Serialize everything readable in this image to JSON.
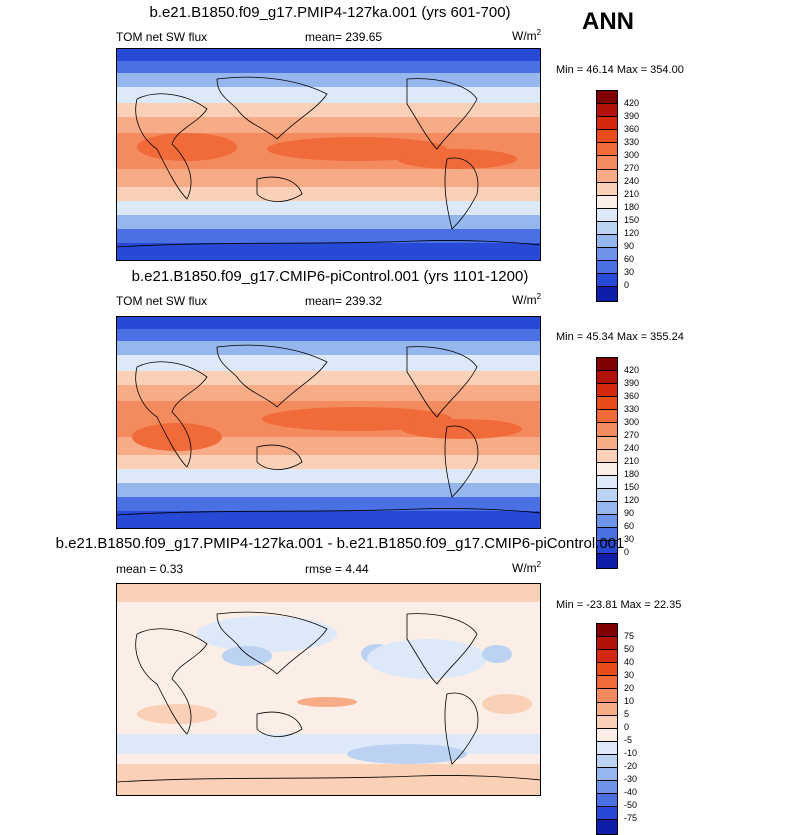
{
  "season": "ANN",
  "panels": [
    {
      "title": "b.e21.B1850.f09_g17.PMIP4-127ka.001 (yrs 601-700)",
      "left": "TOM net SW flux",
      "center": "mean= 239.65",
      "units": "W/m",
      "units_sup": "2",
      "minmax": "Min =  46.14 Max = 354.00",
      "colorbar": "absolute"
    },
    {
      "title": "b.e21.B1850.f09_g17.CMIP6-piControl.001 (yrs 1101-1200)",
      "left": "TOM net SW flux",
      "center": "mean= 239.32",
      "units": "W/m",
      "units_sup": "2",
      "minmax": "Min =  45.34 Max = 355.24",
      "colorbar": "absolute"
    },
    {
      "title": "b.e21.B1850.f09_g17.PMIP4-127ka.001 - b.e21.B1850.f09_g17.CMIP6-piControl.001",
      "left": "mean =   0.33",
      "center": "rmse =   4.44",
      "units": "W/m",
      "units_sup": "2",
      "minmax": "Min = -23.81 Max =  22.35",
      "colorbar": "difference"
    }
  ],
  "colorbars": {
    "absolute": {
      "labels": [
        "420",
        "390",
        "360",
        "330",
        "300",
        "270",
        "240",
        "210",
        "180",
        "150",
        "120",
        "90",
        "60",
        "30",
        "0"
      ],
      "colors": [
        "#7f0000",
        "#b3120a",
        "#d4270e",
        "#e84b1c",
        "#f06a3a",
        "#f48b5e",
        "#f7ab87",
        "#fad0b6",
        "#fbeee6",
        "#dde9f8",
        "#bcd2f3",
        "#96b6ee",
        "#6e94ea",
        "#4a70e4",
        "#2848d6",
        "#0e1ea8"
      ]
    },
    "difference": {
      "labels": [
        "75",
        "50",
        "40",
        "30",
        "20",
        "10",
        "5",
        "0",
        "-5",
        "-10",
        "-20",
        "-30",
        "-40",
        "-50",
        "-75"
      ],
      "colors": [
        "#7f0000",
        "#b3120a",
        "#d4270e",
        "#e84b1c",
        "#f06a3a",
        "#f48b5e",
        "#f7ab87",
        "#fad0b6",
        "#fbeee6",
        "#dde9f8",
        "#bcd2f3",
        "#96b6ee",
        "#6e94ea",
        "#4a70e4",
        "#2848d6",
        "#0e1ea8"
      ]
    }
  },
  "chart_data": [
    {
      "type": "heatmap",
      "title": "b.e21.B1850.f09_g17.PMIP4-127ka.001 (yrs 601-700)",
      "variable": "TOM net SW flux",
      "units": "W/m2",
      "mean": 239.65,
      "min": 46.14,
      "max": 354.0,
      "zonal_profile": [
        50,
        70,
        100,
        160,
        220,
        260,
        290,
        320,
        330,
        320,
        300,
        260,
        220,
        170,
        110,
        60
      ]
    },
    {
      "type": "heatmap",
      "title": "b.e21.B1850.f09_g17.CMIP6-piControl.001 (yrs 1101-1200)",
      "variable": "TOM net SW flux",
      "units": "W/m2",
      "mean": 239.32,
      "min": 45.34,
      "max": 355.24,
      "zonal_profile": [
        50,
        70,
        100,
        160,
        220,
        260,
        290,
        320,
        330,
        320,
        300,
        260,
        220,
        170,
        110,
        60
      ]
    },
    {
      "type": "heatmap",
      "title": "b.e21.B1850.f09_g17.PMIP4-127ka.001 - b.e21.B1850.f09_g17.CMIP6-piControl.001",
      "units": "W/m2",
      "mean": 0.33,
      "rmse": 4.44,
      "min": -23.81,
      "max": 22.35
    }
  ]
}
